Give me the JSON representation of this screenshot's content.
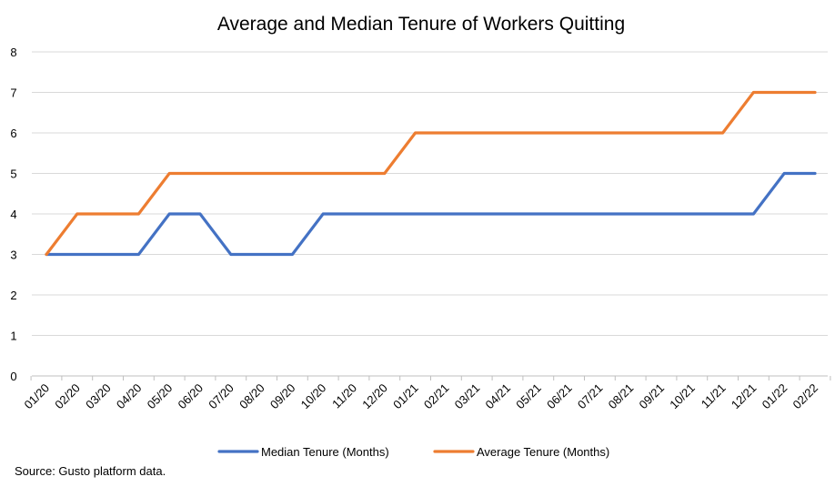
{
  "chart_data": {
    "type": "line",
    "title": "Average and Median Tenure of Workers Quitting",
    "xlabel": "",
    "ylabel": "",
    "categories": [
      "01/20",
      "02/20",
      "03/20",
      "04/20",
      "05/20",
      "06/20",
      "07/20",
      "08/20",
      "09/20",
      "10/20",
      "11/20",
      "12/20",
      "01/21",
      "02/21",
      "03/21",
      "04/21",
      "05/21",
      "06/21",
      "07/21",
      "08/21",
      "09/21",
      "10/21",
      "11/21",
      "12/21",
      "01/22",
      "02/22"
    ],
    "ylim": [
      0,
      8
    ],
    "yticks": [
      0,
      1,
      2,
      3,
      4,
      5,
      6,
      7,
      8
    ],
    "grid": true,
    "legend_position": "bottom",
    "series": [
      {
        "name": "Median Tenure (Months)",
        "color": "#4472C4",
        "values": [
          3,
          3,
          3,
          3,
          4,
          4,
          3,
          3,
          3,
          4,
          4,
          4,
          4,
          4,
          4,
          4,
          4,
          4,
          4,
          4,
          4,
          4,
          4,
          4,
          5,
          5
        ]
      },
      {
        "name": "Average Tenure (Months)",
        "color": "#ED7D31",
        "values": [
          3,
          4,
          4,
          4,
          5,
          5,
          5,
          5,
          5,
          5,
          5,
          5,
          6,
          6,
          6,
          6,
          6,
          6,
          6,
          6,
          6,
          6,
          6,
          7,
          7,
          7
        ]
      }
    ]
  },
  "source_note": "Source: Gusto platform data."
}
